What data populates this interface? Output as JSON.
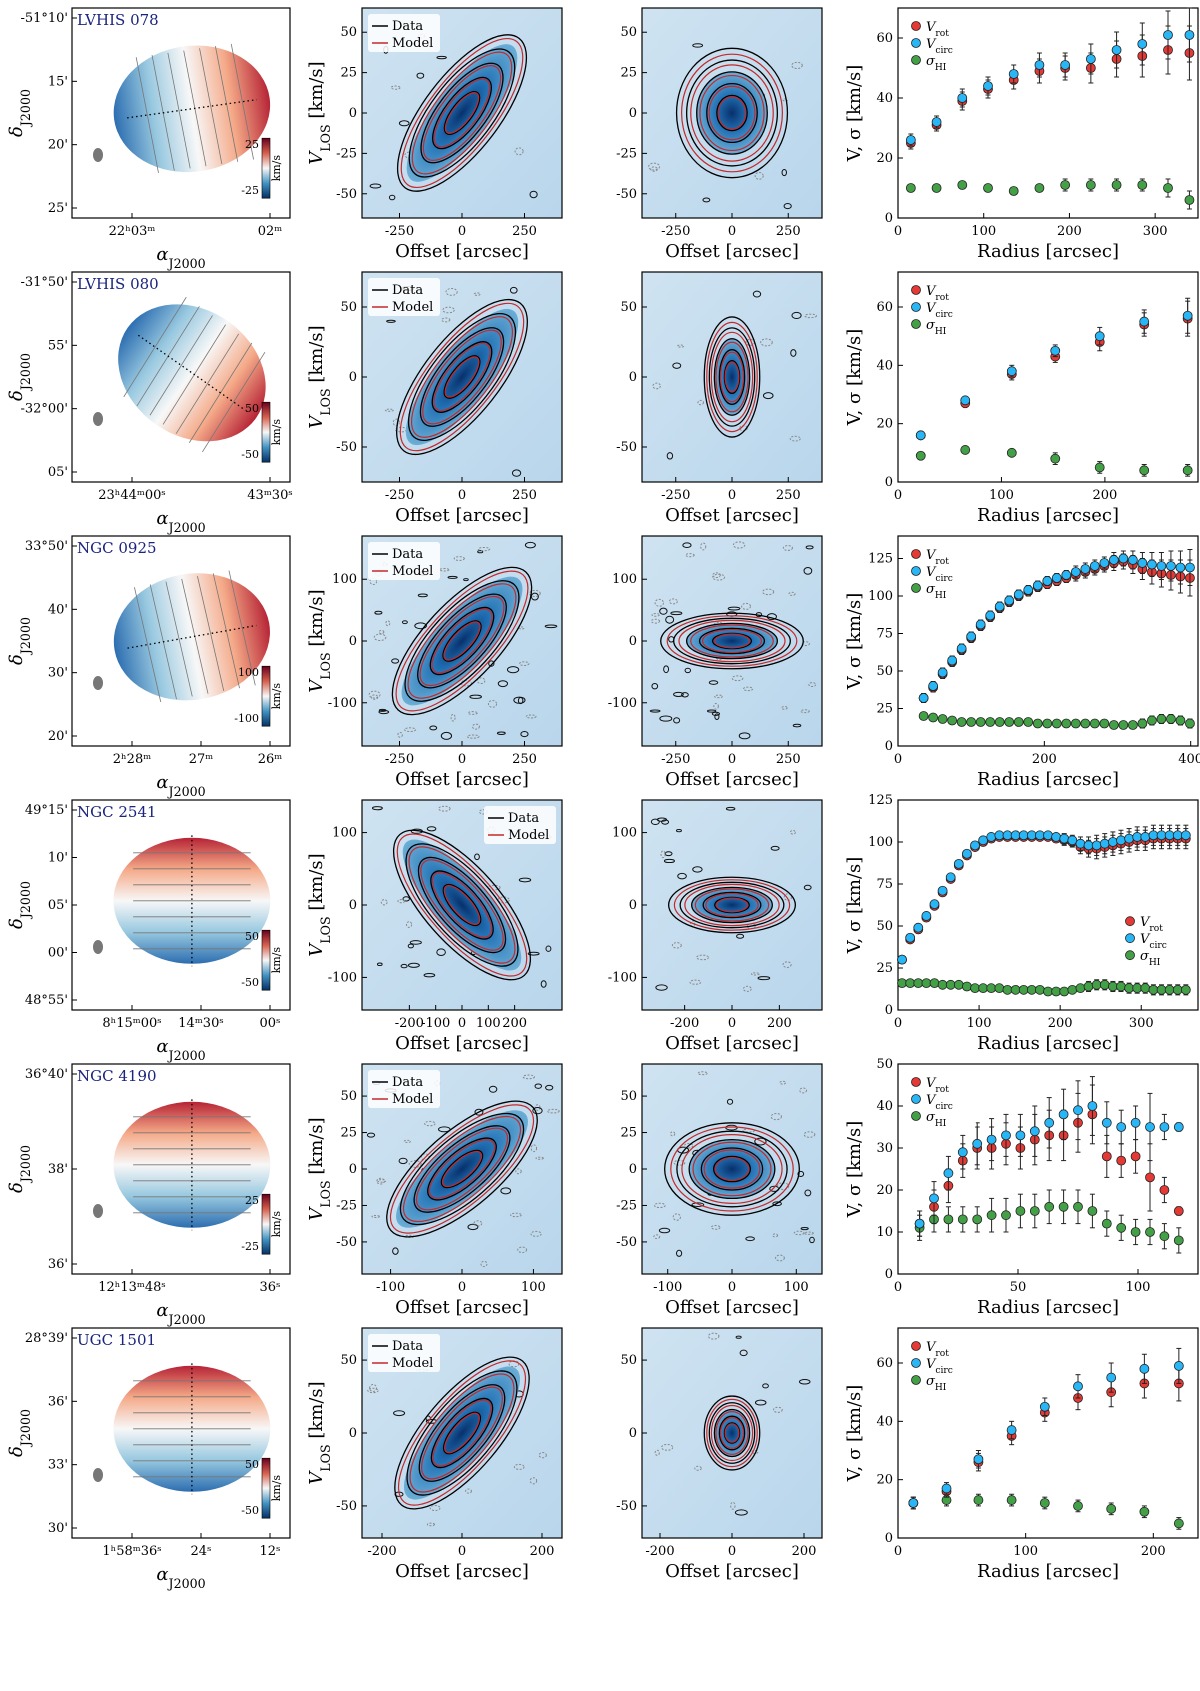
{
  "colors": {
    "rot": "#e53935",
    "circ": "#29b6f6",
    "disp": "#43a047",
    "data": "#000000",
    "model": "#c62828",
    "galaxy_name": "#1a237e"
  },
  "legend": {
    "data": "Data",
    "model": "Model",
    "rot_main": "V",
    "rot_sub": "rot",
    "circ_main": "V",
    "circ_sub": "circ",
    "disp_main": "σ",
    "disp_sub": "HI"
  },
  "labels": {
    "ra": "α",
    "ra_sub": "J2000",
    "dec": "δ",
    "dec_sub": "J2000",
    "offset": "Offset [arcsec]",
    "vlos_main": "V",
    "vlos_sub": "LOS",
    "vlos_unit": " [km/s]",
    "radius": "Radius [arcsec]",
    "vsig": "V, σ [km/s]",
    "cb_unit": "km/s"
  },
  "chart_data": [
    {
      "type": "scatter",
      "galaxy": "LVHIS 078",
      "map": {
        "dec_ticks": [
          "-51°10'",
          "15'",
          "20'",
          "25'"
        ],
        "ra_ticks": [
          "22ʰ03ᵐ",
          "02ᵐ"
        ],
        "cbar": {
          "max": "25",
          "min": "-25",
          "range": 35
        }
      },
      "pv_major": {
        "xlim": [
          -400,
          400
        ],
        "ylim": [
          -65,
          65
        ],
        "xticks": [
          -250,
          0,
          250
        ],
        "yticks": [
          50,
          25,
          0,
          -25,
          -50
        ],
        "vmax": 52,
        "slope_kind": "pos"
      },
      "pv_minor": {
        "xlim": [
          -400,
          400
        ],
        "ylim": [
          -65,
          65
        ],
        "xticks": [
          -250,
          0,
          250
        ],
        "yticks": [
          50,
          25,
          0,
          -25,
          -50
        ]
      },
      "rc": {
        "xlim": [
          0,
          350
        ],
        "ylim": [
          0,
          70
        ],
        "xticks": [
          0,
          100,
          200,
          300
        ],
        "yticks": [
          0,
          20,
          40,
          60
        ],
        "legend_pos": "top-left",
        "radius": [
          15,
          45,
          75,
          105,
          135,
          165,
          195,
          225,
          255,
          285,
          315,
          340
        ],
        "vrot": [
          25,
          31,
          39,
          43,
          46,
          49,
          50,
          50,
          53,
          54,
          56,
          55
        ],
        "vcirc": [
          26,
          32,
          40,
          44,
          48,
          51,
          51,
          53,
          56,
          58,
          61,
          61
        ],
        "sigma": [
          10,
          10,
          11,
          10,
          9,
          10,
          11,
          11,
          11,
          11,
          10,
          6
        ],
        "err_v": [
          2,
          2,
          3,
          3,
          3,
          4,
          4,
          5,
          6,
          7,
          8,
          9
        ],
        "err_s": [
          1,
          1,
          1,
          1,
          1,
          1,
          2,
          2,
          2,
          2,
          3,
          3
        ]
      }
    },
    {
      "type": "scatter",
      "galaxy": "LVHIS 080",
      "map": {
        "dec_ticks": [
          "-31°50'",
          "55'",
          "-32°00'",
          "05'"
        ],
        "ra_ticks": [
          "23ʰ44ᵐ00ˢ",
          "43ᵐ30ˢ"
        ],
        "cbar": {
          "max": "50",
          "min": "-50",
          "range": 60
        }
      },
      "pv_major": {
        "xlim": [
          -400,
          400
        ],
        "ylim": [
          -75,
          75
        ],
        "xticks": [
          -250,
          0,
          250
        ],
        "yticks": [
          50,
          0,
          -50
        ],
        "vmax": 58,
        "slope_kind": "pos"
      },
      "pv_minor": {
        "xlim": [
          -400,
          400
        ],
        "ylim": [
          -75,
          75
        ],
        "xticks": [
          -250,
          0,
          250
        ],
        "yticks": [
          50,
          0,
          -50
        ]
      },
      "rc": {
        "xlim": [
          0,
          290
        ],
        "ylim": [
          0,
          72
        ],
        "xticks": [
          0,
          100,
          200
        ],
        "yticks": [
          0,
          20,
          40,
          60
        ],
        "legend_pos": "top-left",
        "radius": [
          22,
          65,
          110,
          152,
          195,
          238,
          280
        ],
        "vrot": [
          16,
          27,
          37,
          43,
          48,
          54,
          56
        ],
        "vcirc": [
          16,
          28,
          38,
          45,
          50,
          55,
          57
        ],
        "sigma": [
          9,
          11,
          10,
          8,
          5,
          4,
          4
        ],
        "err_v": [
          1,
          1,
          2,
          2,
          3,
          4,
          6
        ],
        "err_s": [
          1,
          1,
          1,
          2,
          2,
          2,
          2
        ]
      }
    },
    {
      "type": "scatter",
      "galaxy": "NGC 0925",
      "map": {
        "dec_ticks": [
          "33°50'",
          "40'",
          "30'",
          "20'"
        ],
        "ra_ticks": [
          "2ʰ28ᵐ",
          "27ᵐ",
          "26ᵐ"
        ],
        "cbar": {
          "max": "100",
          "min": "-100",
          "range": 120
        }
      },
      "pv_major": {
        "xlim": [
          -400,
          400
        ],
        "ylim": [
          -170,
          170
        ],
        "xticks": [
          -250,
          0,
          250
        ],
        "yticks": [
          100,
          0,
          -100
        ],
        "vmax": 112,
        "slope_kind": "pos"
      },
      "pv_minor": {
        "xlim": [
          -400,
          400
        ],
        "ylim": [
          -170,
          170
        ],
        "xticks": [
          -250,
          0,
          250
        ],
        "yticks": [
          100,
          0,
          -100
        ]
      },
      "rc": {
        "xlim": [
          0,
          410
        ],
        "ylim": [
          0,
          140
        ],
        "xticks": [
          0,
          200,
          400
        ],
        "yticks": [
          0,
          25,
          50,
          75,
          100,
          125
        ],
        "legend_pos": "top-left",
        "radius": [
          35,
          48,
          61,
          74,
          87,
          100,
          113,
          126,
          139,
          152,
          165,
          178,
          191,
          204,
          217,
          230,
          243,
          256,
          269,
          282,
          295,
          308,
          321,
          334,
          347,
          360,
          373,
          386,
          399
        ],
        "vrot": [
          32,
          39,
          48,
          56,
          64,
          72,
          80,
          86,
          92,
          96,
          100,
          103,
          106,
          108,
          110,
          112,
          114,
          116,
          118,
          120,
          122,
          123,
          121,
          118,
          116,
          115,
          114,
          113,
          112
        ],
        "vcirc": [
          32,
          40,
          49,
          57,
          65,
          73,
          81,
          87,
          93,
          97,
          101,
          104,
          107,
          110,
          112,
          114,
          116,
          118,
          120,
          122,
          124,
          125,
          124,
          122,
          121,
          120,
          120,
          119,
          119
        ],
        "sigma": [
          20,
          19,
          18,
          17,
          16,
          16,
          16,
          16,
          16,
          16,
          16,
          16,
          15,
          15,
          15,
          15,
          15,
          15,
          15,
          15,
          14,
          14,
          14,
          15,
          17,
          18,
          18,
          17,
          15
        ],
        "err_v": [
          3,
          3,
          3,
          3,
          3,
          3,
          3,
          3,
          3,
          3,
          3,
          3,
          3,
          3,
          3,
          3,
          4,
          4,
          4,
          4,
          5,
          5,
          6,
          7,
          8,
          9,
          10,
          11,
          12
        ],
        "err_s": [
          2,
          2,
          2,
          2,
          2,
          2,
          2,
          2,
          2,
          2,
          2,
          2,
          2,
          2,
          2,
          2,
          2,
          2,
          2,
          2,
          2,
          2,
          2,
          3,
          3,
          3,
          3,
          3,
          3
        ]
      }
    },
    {
      "type": "scatter",
      "galaxy": "NGC 2541",
      "map": {
        "dec_ticks": [
          "49°15'",
          "10'",
          "05'",
          "00'",
          "48°55'"
        ],
        "ra_ticks": [
          "8ʰ15ᵐ00ˢ",
          "14ᵐ30ˢ",
          "00ˢ"
        ],
        "cbar": {
          "max": "50",
          "min": "-50",
          "range": 60
        }
      },
      "pv_major": {
        "xlim": [
          -380,
          380
        ],
        "ylim": [
          -145,
          145
        ],
        "xticks": [
          -200,
          -100,
          0,
          100,
          200
        ],
        "yticks": [
          100,
          0,
          -100
        ],
        "vmax": 100,
        "slope_kind": "neg"
      },
      "pv_minor": {
        "xlim": [
          -380,
          380
        ],
        "ylim": [
          -145,
          145
        ],
        "xticks": [
          -200,
          0,
          200
        ],
        "yticks": [
          100,
          0,
          -100
        ]
      },
      "rc": {
        "xlim": [
          0,
          370
        ],
        "ylim": [
          0,
          125
        ],
        "xticks": [
          0,
          100,
          200,
          300
        ],
        "yticks": [
          0,
          25,
          50,
          75,
          100,
          125
        ],
        "legend_pos": "middle-right",
        "radius": [
          5,
          15,
          25,
          35,
          45,
          55,
          65,
          75,
          85,
          95,
          105,
          115,
          125,
          135,
          145,
          155,
          165,
          175,
          185,
          195,
          205,
          215,
          225,
          235,
          245,
          255,
          265,
          275,
          285,
          295,
          305,
          315,
          325,
          335,
          345,
          355
        ],
        "vrot": [
          30,
          42,
          48,
          55,
          62,
          70,
          78,
          86,
          92,
          97,
          100,
          102,
          103,
          103,
          103,
          103,
          103,
          103,
          103,
          102,
          101,
          100,
          97,
          96,
          96,
          97,
          98,
          99,
          100,
          101,
          101,
          102,
          102,
          102,
          102,
          102
        ],
        "vcirc": [
          30,
          43,
          49,
          56,
          63,
          71,
          79,
          87,
          93,
          98,
          101,
          103,
          104,
          104,
          104,
          104,
          104,
          104,
          104,
          103,
          102,
          101,
          99,
          98,
          98,
          99,
          100,
          101,
          102,
          103,
          103,
          104,
          104,
          104,
          104,
          104
        ],
        "sigma": [
          16,
          16,
          16,
          16,
          16,
          15,
          15,
          15,
          14,
          13,
          13,
          13,
          13,
          12,
          12,
          12,
          12,
          12,
          11,
          11,
          11,
          12,
          13,
          14,
          15,
          15,
          14,
          14,
          13,
          13,
          13,
          12,
          12,
          12,
          12,
          12
        ],
        "err_v": [
          2,
          2,
          2,
          2,
          2,
          2,
          2,
          2,
          2,
          2,
          2,
          2,
          2,
          2,
          2,
          2,
          2,
          2,
          2,
          2,
          3,
          3,
          4,
          5,
          6,
          6,
          6,
          6,
          6,
          6,
          6,
          6,
          6,
          6,
          6,
          6
        ],
        "err_s": [
          2,
          2,
          2,
          2,
          2,
          2,
          2,
          2,
          2,
          2,
          2,
          2,
          2,
          2,
          2,
          2,
          2,
          2,
          2,
          2,
          2,
          2,
          2,
          3,
          3,
          3,
          3,
          3,
          3,
          3,
          3,
          3,
          3,
          3,
          3,
          3
        ]
      }
    },
    {
      "type": "scatter",
      "galaxy": "NGC 4190",
      "map": {
        "dec_ticks": [
          "36°40'",
          "38'",
          "36'"
        ],
        "ra_ticks": [
          "12ʰ13ᵐ48ˢ",
          "36ˢ"
        ],
        "cbar": {
          "max": "25",
          "min": "-25",
          "range": 35
        }
      },
      "pv_major": {
        "xlim": [
          -140,
          140
        ],
        "ylim": [
          -72,
          72
        ],
        "xticks": [
          -100,
          0,
          100
        ],
        "yticks": [
          50,
          25,
          0,
          -25,
          -50
        ],
        "vmax": 38,
        "slope_kind": "pos"
      },
      "pv_minor": {
        "xlim": [
          -140,
          140
        ],
        "ylim": [
          -72,
          72
        ],
        "xticks": [
          -100,
          0,
          100
        ],
        "yticks": [
          50,
          25,
          0,
          -25,
          -50
        ]
      },
      "rc": {
        "xlim": [
          0,
          125
        ],
        "ylim": [
          0,
          50
        ],
        "xticks": [
          0,
          50,
          100
        ],
        "yticks": [
          0,
          10,
          20,
          30,
          40,
          50
        ],
        "legend_pos": "top-left",
        "radius": [
          9,
          15,
          21,
          27,
          33,
          39,
          45,
          51,
          57,
          63,
          69,
          75,
          81,
          87,
          93,
          99,
          105,
          111,
          117
        ],
        "vrot": [
          12,
          16,
          21,
          27,
          30,
          30,
          31,
          30,
          32,
          33,
          33,
          36,
          38,
          28,
          27,
          28,
          23,
          20,
          15
        ],
        "vcirc": [
          12,
          18,
          24,
          29,
          31,
          32,
          33,
          33,
          34,
          36,
          38,
          39,
          40,
          36,
          35,
          36,
          35,
          35,
          35
        ],
        "sigma": [
          11,
          13,
          13,
          13,
          13,
          14,
          14,
          15,
          15,
          16,
          16,
          16,
          15,
          12,
          11,
          10,
          10,
          9,
          8
        ],
        "err_v": [
          3,
          4,
          4,
          4,
          5,
          5,
          5,
          5,
          6,
          6,
          6,
          7,
          7,
          5,
          4,
          4,
          8,
          3,
          1
        ],
        "err_s": [
          3,
          3,
          3,
          3,
          3,
          4,
          4,
          4,
          4,
          4,
          4,
          4,
          4,
          3,
          3,
          3,
          3,
          3,
          3
        ]
      }
    },
    {
      "type": "scatter",
      "galaxy": "UGC 1501",
      "map": {
        "dec_ticks": [
          "28°39'",
          "36'",
          "33'",
          "30'"
        ],
        "ra_ticks": [
          "1ʰ58ᵐ36ˢ",
          "24ˢ",
          "12ˢ"
        ],
        "cbar": {
          "max": "50",
          "min": "-50",
          "range": 60
        }
      },
      "pv_major": {
        "xlim": [
          -250,
          250
        ],
        "ylim": [
          -72,
          72
        ],
        "xticks": [
          -200,
          0,
          200
        ],
        "yticks": [
          50,
          0,
          -50
        ],
        "vmax": 52,
        "slope_kind": "pos"
      },
      "pv_minor": {
        "xlim": [
          -250,
          250
        ],
        "ylim": [
          -72,
          72
        ],
        "xticks": [
          -200,
          0,
          200
        ],
        "yticks": [
          50,
          0,
          -50
        ]
      },
      "rc": {
        "xlim": [
          0,
          235
        ],
        "ylim": [
          0,
          72
        ],
        "xticks": [
          0,
          100,
          200
        ],
        "yticks": [
          0,
          20,
          40,
          60
        ],
        "legend_pos": "top-left",
        "radius": [
          12,
          38,
          63,
          89,
          115,
          141,
          167,
          193,
          220
        ],
        "vrot": [
          12,
          16,
          26,
          35,
          43,
          48,
          50,
          53,
          53
        ],
        "vcirc": [
          12,
          17,
          27,
          37,
          45,
          52,
          55,
          58,
          59
        ],
        "sigma": [
          12,
          13,
          13,
          13,
          12,
          11,
          10,
          9,
          5
        ],
        "err_v": [
          2,
          2,
          3,
          3,
          3,
          4,
          5,
          5,
          6
        ],
        "err_s": [
          2,
          2,
          2,
          2,
          2,
          2,
          2,
          2,
          2
        ]
      }
    }
  ]
}
